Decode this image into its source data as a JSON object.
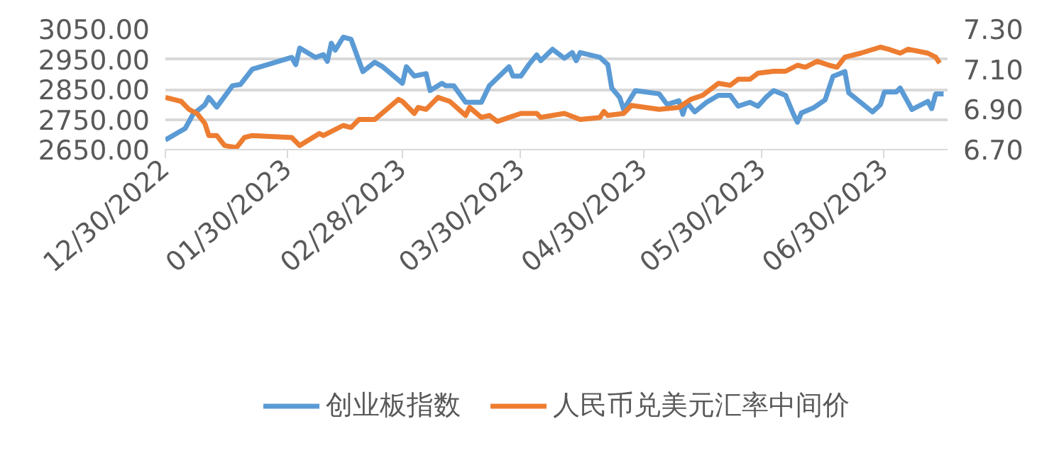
{
  "chart_data": {
    "type": "line",
    "xlim": [
      "2022-12-30",
      "2023-07-16"
    ],
    "xticks": [
      {
        "value": "2022-12-30",
        "label": "12/30/2022"
      },
      {
        "value": "2023-01-30",
        "label": "01/30/2023"
      },
      {
        "value": "2023-02-28",
        "label": "02/28/2023"
      },
      {
        "value": "2023-03-30",
        "label": "03/30/2023"
      },
      {
        "value": "2023-04-30",
        "label": "04/30/2023"
      },
      {
        "value": "2023-05-30",
        "label": "05/30/2023"
      },
      {
        "value": "2023-06-30",
        "label": "06/30/2023"
      }
    ],
    "ylim": [
      2650,
      3050
    ],
    "yticks": [
      {
        "value": 2650,
        "label": "2650.00"
      },
      {
        "value": 2750,
        "label": "2750.00"
      },
      {
        "value": 2850,
        "label": "2850.00"
      },
      {
        "value": 2950,
        "label": "2950.00"
      },
      {
        "value": 3050,
        "label": "3050.00"
      }
    ],
    "y2lim": [
      6.7,
      7.3
    ],
    "y2ticks": [
      {
        "value": 6.7,
        "label": "6.70"
      },
      {
        "value": 6.9,
        "label": "6.90"
      },
      {
        "value": 7.1,
        "label": "7.10"
      },
      {
        "value": 7.3,
        "label": "7.30"
      }
    ],
    "grid": "y",
    "legend": "bottom",
    "marker": "none",
    "line_style": "solid",
    "series": [
      {
        "name": "创业板指数",
        "color": "#5b9bd5",
        "x": [
          "2022-12-30",
          "2023-01-04",
          "2023-01-06",
          "2023-01-09",
          "2023-01-10",
          "2023-01-12",
          "2023-01-16",
          "2023-01-18",
          "2023-01-21",
          "2023-01-31",
          "2023-02-01",
          "2023-02-02",
          "2023-02-06",
          "2023-02-08",
          "2023-02-09",
          "2023-02-10",
          "2023-02-11",
          "2023-02-13",
          "2023-02-15",
          "2023-02-18",
          "2023-02-21",
          "2023-02-23",
          "2023-02-28",
          "2023-03-01",
          "2023-03-03",
          "2023-03-06",
          "2023-03-07",
          "2023-03-10",
          "2023-03-11",
          "2023-03-13",
          "2023-03-16",
          "2023-03-20",
          "2023-03-22",
          "2023-03-27",
          "2023-03-28",
          "2023-03-30",
          "2023-04-01",
          "2023-04-03",
          "2023-04-04",
          "2023-04-07",
          "2023-04-10",
          "2023-04-12",
          "2023-04-13",
          "2023-04-14",
          "2023-04-19",
          "2023-04-21",
          "2023-04-22",
          "2023-04-24",
          "2023-04-25",
          "2023-04-28",
          "2023-05-04",
          "2023-05-06",
          "2023-05-09",
          "2023-05-10",
          "2023-05-11",
          "2023-05-13",
          "2023-05-16",
          "2023-05-19",
          "2023-05-22",
          "2023-05-24",
          "2023-05-27",
          "2023-05-29",
          "2023-05-31",
          "2023-06-02",
          "2023-06-05",
          "2023-06-07",
          "2023-06-08",
          "2023-06-09",
          "2023-06-12",
          "2023-06-15",
          "2023-06-17",
          "2023-06-20",
          "2023-06-21",
          "2023-06-27",
          "2023-06-29",
          "2023-06-30",
          "2023-07-03",
          "2023-07-04",
          "2023-07-07",
          "2023-07-11",
          "2023-07-12",
          "2023-07-13",
          "2023-07-15"
        ],
        "values": [
          2682,
          2720,
          2767,
          2799,
          2823,
          2791,
          2862,
          2866,
          2917,
          2956,
          2932,
          2987,
          2956,
          2965,
          2943,
          3003,
          2980,
          3023,
          3016,
          2909,
          2940,
          2925,
          2870,
          2925,
          2894,
          2902,
          2846,
          2870,
          2862,
          2862,
          2807,
          2807,
          2862,
          2925,
          2894,
          2894,
          2932,
          2964,
          2945,
          2983,
          2953,
          2972,
          2945,
          2972,
          2956,
          2932,
          2854,
          2823,
          2783,
          2846,
          2835,
          2800,
          2812,
          2767,
          2807,
          2775,
          2807,
          2830,
          2830,
          2794,
          2807,
          2794,
          2823,
          2846,
          2830,
          2767,
          2741,
          2772,
          2788,
          2815,
          2893,
          2909,
          2838,
          2775,
          2799,
          2841,
          2841,
          2854,
          2783,
          2810,
          2786,
          2835,
          2835
        ]
      },
      {
        "name": "人民币兑美元汇率中间价",
        "color": "#ed7d31",
        "axis": "y2",
        "x": [
          "2022-12-30",
          "2023-01-03",
          "2023-01-05",
          "2023-01-07",
          "2023-01-09",
          "2023-01-10",
          "2023-01-12",
          "2023-01-14",
          "2023-01-17",
          "2023-01-19",
          "2023-01-21",
          "2023-01-31",
          "2023-02-02",
          "2023-02-07",
          "2023-02-08",
          "2023-02-13",
          "2023-02-15",
          "2023-02-17",
          "2023-02-21",
          "2023-02-24",
          "2023-02-27",
          "2023-02-28",
          "2023-03-03",
          "2023-03-04",
          "2023-03-06",
          "2023-03-09",
          "2023-03-12",
          "2023-03-16",
          "2023-03-17",
          "2023-03-20",
          "2023-03-22",
          "2023-03-24",
          "2023-03-27",
          "2023-03-30",
          "2023-04-03",
          "2023-04-04",
          "2023-04-10",
          "2023-04-14",
          "2023-04-19",
          "2023-04-20",
          "2023-04-21",
          "2023-04-25",
          "2023-04-27",
          "2023-05-04",
          "2023-05-09",
          "2023-05-12",
          "2023-05-15",
          "2023-05-19",
          "2023-05-22",
          "2023-05-24",
          "2023-05-27",
          "2023-05-29",
          "2023-06-02",
          "2023-06-05",
          "2023-06-08",
          "2023-06-10",
          "2023-06-13",
          "2023-06-16",
          "2023-06-18",
          "2023-06-20",
          "2023-06-24",
          "2023-06-29",
          "2023-07-01",
          "2023-07-04",
          "2023-07-06",
          "2023-07-11",
          "2023-07-13",
          "2023-07-14"
        ],
        "values": [
          6.96,
          6.94,
          6.9,
          6.88,
          6.83,
          6.77,
          6.77,
          6.72,
          6.71,
          6.76,
          6.77,
          6.76,
          6.72,
          6.78,
          6.77,
          6.82,
          6.81,
          6.85,
          6.85,
          6.9,
          6.95,
          6.94,
          6.88,
          6.91,
          6.9,
          6.96,
          6.94,
          6.87,
          6.91,
          6.86,
          6.87,
          6.84,
          6.86,
          6.88,
          6.88,
          6.86,
          6.88,
          6.85,
          6.86,
          6.89,
          6.87,
          6.88,
          6.92,
          6.9,
          6.91,
          6.95,
          6.97,
          7.03,
          7.02,
          7.05,
          7.05,
          7.08,
          7.09,
          7.09,
          7.12,
          7.11,
          7.14,
          7.12,
          7.11,
          7.16,
          7.18,
          7.21,
          7.2,
          7.18,
          7.2,
          7.18,
          7.16,
          7.13
        ]
      }
    ]
  }
}
